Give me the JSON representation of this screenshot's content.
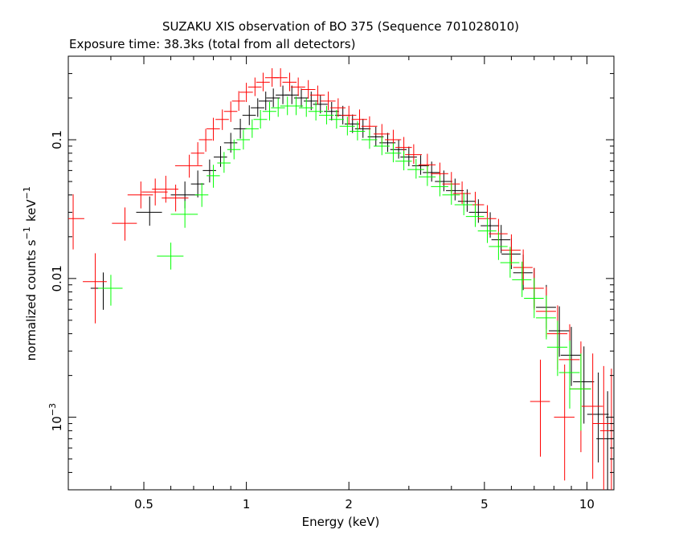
{
  "chart_data": {
    "type": "scatter",
    "title": "SUZAKU XIS observation of BO 375 (Sequence 701028010)",
    "subtitle": "Exposure time: 38.3ks (total from all detectors)",
    "xlabel": "Energy (keV)",
    "ylabel": "normalized counts s⁻¹ keV⁻¹",
    "x_scale": "log",
    "y_scale": "log",
    "xlim": [
      0.3,
      12
    ],
    "ylim": [
      0.0003,
      0.4
    ],
    "grid": false,
    "x_ticks": [
      {
        "value": 0.5,
        "label": "0.5"
      },
      {
        "value": 1,
        "label": "1"
      },
      {
        "value": 2,
        "label": "2"
      },
      {
        "value": 5,
        "label": "5"
      },
      {
        "value": 10,
        "label": "10"
      }
    ],
    "y_ticks": [
      {
        "value": 0.1,
        "label": "0.1"
      },
      {
        "value": 0.01,
        "label": "0.01"
      },
      {
        "value": 0.001,
        "base": "10",
        "exp": "−3"
      }
    ],
    "series": [
      {
        "color": "#000000",
        "points": [
          [
            0.38,
            0.0085,
            0.7,
            1.3
          ],
          [
            0.52,
            0.03,
            0.8,
            1.3
          ],
          [
            0.66,
            0.04,
            0.8,
            1.25
          ],
          [
            0.72,
            0.048,
            0.8,
            1.25
          ],
          [
            0.78,
            0.06,
            0.82,
            1.2
          ],
          [
            0.84,
            0.075,
            0.85,
            1.2
          ],
          [
            0.9,
            0.095,
            0.85,
            1.18
          ],
          [
            0.96,
            0.12,
            0.85,
            1.18
          ],
          [
            1.02,
            0.15,
            0.85,
            1.18
          ],
          [
            1.08,
            0.17,
            0.86,
            1.17
          ],
          [
            1.14,
            0.19,
            0.86,
            1.17
          ],
          [
            1.2,
            0.2,
            0.86,
            1.17
          ],
          [
            1.28,
            0.21,
            0.86,
            1.17
          ],
          [
            1.36,
            0.21,
            0.86,
            1.17
          ],
          [
            1.45,
            0.2,
            0.86,
            1.17
          ],
          [
            1.55,
            0.19,
            0.86,
            1.17
          ],
          [
            1.65,
            0.18,
            0.86,
            1.17
          ],
          [
            1.78,
            0.16,
            0.86,
            1.17
          ],
          [
            1.92,
            0.15,
            0.86,
            1.17
          ],
          [
            2.05,
            0.13,
            0.86,
            1.17
          ],
          [
            2.2,
            0.12,
            0.86,
            1.18
          ],
          [
            2.4,
            0.105,
            0.86,
            1.18
          ],
          [
            2.6,
            0.095,
            0.86,
            1.18
          ],
          [
            2.8,
            0.085,
            0.86,
            1.18
          ],
          [
            3.0,
            0.075,
            0.86,
            1.19
          ],
          [
            3.25,
            0.065,
            0.86,
            1.19
          ],
          [
            3.5,
            0.058,
            0.86,
            1.2
          ],
          [
            3.8,
            0.05,
            0.85,
            1.2
          ],
          [
            4.1,
            0.043,
            0.85,
            1.22
          ],
          [
            4.45,
            0.036,
            0.84,
            1.22
          ],
          [
            4.8,
            0.03,
            0.84,
            1.24
          ],
          [
            5.2,
            0.024,
            0.82,
            1.25
          ],
          [
            5.6,
            0.019,
            0.8,
            1.28
          ],
          [
            6.0,
            0.015,
            0.78,
            1.3
          ],
          [
            6.5,
            0.011,
            0.75,
            1.35
          ],
          [
            7.0,
            0.0085,
            0.72,
            1.4
          ],
          [
            7.6,
            0.0062,
            0.7,
            1.45
          ],
          [
            8.3,
            0.0042,
            0.65,
            1.5
          ],
          [
            9.0,
            0.0028,
            0.6,
            1.6
          ],
          [
            9.8,
            0.0018,
            0.5,
            1.8
          ],
          [
            10.8,
            0.00105,
            0.45,
            2.0
          ],
          [
            11.5,
            0.0007,
            0.4,
            2.2
          ]
        ]
      },
      {
        "color": "#ff0000",
        "points": [
          [
            0.31,
            0.027,
            0.6,
            1.5
          ],
          [
            0.36,
            0.0095,
            0.5,
            1.6
          ],
          [
            0.44,
            0.025,
            0.75,
            1.3
          ],
          [
            0.49,
            0.04,
            0.8,
            1.25
          ],
          [
            0.54,
            0.042,
            0.8,
            1.25
          ],
          [
            0.58,
            0.044,
            0.8,
            1.25
          ],
          [
            0.62,
            0.038,
            0.8,
            1.25
          ],
          [
            0.68,
            0.065,
            0.82,
            1.2
          ],
          [
            0.72,
            0.08,
            0.82,
            1.2
          ],
          [
            0.76,
            0.1,
            0.82,
            1.2
          ],
          [
            0.8,
            0.12,
            0.82,
            1.2
          ],
          [
            0.85,
            0.14,
            0.84,
            1.18
          ],
          [
            0.9,
            0.16,
            0.84,
            1.18
          ],
          [
            0.95,
            0.19,
            0.85,
            1.18
          ],
          [
            1.0,
            0.22,
            0.85,
            1.17
          ],
          [
            1.06,
            0.24,
            0.86,
            1.17
          ],
          [
            1.12,
            0.26,
            0.86,
            1.17
          ],
          [
            1.19,
            0.28,
            0.86,
            1.17
          ],
          [
            1.26,
            0.28,
            0.86,
            1.17
          ],
          [
            1.34,
            0.26,
            0.86,
            1.17
          ],
          [
            1.42,
            0.24,
            0.86,
            1.17
          ],
          [
            1.52,
            0.23,
            0.86,
            1.17
          ],
          [
            1.62,
            0.21,
            0.86,
            1.17
          ],
          [
            1.74,
            0.19,
            0.86,
            1.17
          ],
          [
            1.86,
            0.17,
            0.86,
            1.17
          ],
          [
            2.0,
            0.15,
            0.86,
            1.17
          ],
          [
            2.15,
            0.14,
            0.86,
            1.18
          ],
          [
            2.3,
            0.125,
            0.86,
            1.18
          ],
          [
            2.5,
            0.11,
            0.86,
            1.18
          ],
          [
            2.7,
            0.1,
            0.86,
            1.18
          ],
          [
            2.9,
            0.088,
            0.86,
            1.19
          ],
          [
            3.1,
            0.078,
            0.86,
            1.19
          ],
          [
            3.4,
            0.066,
            0.86,
            1.2
          ],
          [
            3.7,
            0.057,
            0.85,
            1.2
          ],
          [
            4.0,
            0.048,
            0.85,
            1.22
          ],
          [
            4.3,
            0.041,
            0.84,
            1.22
          ],
          [
            4.7,
            0.034,
            0.84,
            1.24
          ],
          [
            5.1,
            0.027,
            0.82,
            1.25
          ],
          [
            5.5,
            0.021,
            0.8,
            1.28
          ],
          [
            6.0,
            0.016,
            0.78,
            1.3
          ],
          [
            6.5,
            0.012,
            0.75,
            1.35
          ],
          [
            7.0,
            0.0085,
            0.7,
            1.4
          ],
          [
            7.6,
            0.0058,
            0.65,
            1.5
          ],
          [
            8.2,
            0.004,
            0.55,
            1.6
          ],
          [
            8.9,
            0.0026,
            0.45,
            1.8
          ],
          [
            9.6,
            0.0016,
            0.35,
            2.2
          ],
          [
            10.4,
            0.0012,
            0.3,
            2.4
          ],
          [
            11.2,
            0.0009,
            0.3,
            2.6
          ],
          [
            11.8,
            0.0008,
            0.3,
            2.8
          ],
          [
            7.3,
            0.0013,
            0.4,
            2.0
          ],
          [
            8.6,
            0.001,
            0.35,
            2.4
          ]
        ]
      },
      {
        "color": "#00ff00",
        "points": [
          [
            0.4,
            0.0085,
            0.75,
            1.25
          ],
          [
            0.6,
            0.0145,
            0.8,
            1.25
          ],
          [
            0.66,
            0.029,
            0.8,
            1.25
          ],
          [
            0.74,
            0.04,
            0.82,
            1.22
          ],
          [
            0.8,
            0.055,
            0.82,
            1.2
          ],
          [
            0.86,
            0.068,
            0.85,
            1.2
          ],
          [
            0.92,
            0.085,
            0.85,
            1.18
          ],
          [
            0.98,
            0.1,
            0.85,
            1.18
          ],
          [
            1.04,
            0.12,
            0.86,
            1.17
          ],
          [
            1.1,
            0.14,
            0.86,
            1.17
          ],
          [
            1.17,
            0.16,
            0.86,
            1.17
          ],
          [
            1.24,
            0.17,
            0.86,
            1.17
          ],
          [
            1.32,
            0.175,
            0.86,
            1.17
          ],
          [
            1.4,
            0.175,
            0.86,
            1.17
          ],
          [
            1.5,
            0.17,
            0.86,
            1.17
          ],
          [
            1.6,
            0.16,
            0.86,
            1.17
          ],
          [
            1.72,
            0.15,
            0.86,
            1.17
          ],
          [
            1.84,
            0.14,
            0.86,
            1.17
          ],
          [
            1.98,
            0.125,
            0.86,
            1.17
          ],
          [
            2.12,
            0.115,
            0.86,
            1.18
          ],
          [
            2.3,
            0.1,
            0.86,
            1.18
          ],
          [
            2.5,
            0.09,
            0.86,
            1.18
          ],
          [
            2.7,
            0.08,
            0.86,
            1.18
          ],
          [
            2.9,
            0.07,
            0.86,
            1.19
          ],
          [
            3.15,
            0.061,
            0.86,
            1.19
          ],
          [
            3.4,
            0.054,
            0.86,
            1.2
          ],
          [
            3.7,
            0.046,
            0.85,
            1.2
          ],
          [
            4.0,
            0.04,
            0.85,
            1.22
          ],
          [
            4.35,
            0.034,
            0.84,
            1.22
          ],
          [
            4.7,
            0.028,
            0.84,
            1.24
          ],
          [
            5.1,
            0.022,
            0.82,
            1.25
          ],
          [
            5.5,
            0.017,
            0.8,
            1.28
          ],
          [
            5.95,
            0.013,
            0.78,
            1.3
          ],
          [
            6.45,
            0.0098,
            0.75,
            1.35
          ],
          [
            7.0,
            0.0072,
            0.72,
            1.4
          ],
          [
            7.6,
            0.0052,
            0.7,
            1.45
          ],
          [
            8.2,
            0.0032,
            0.62,
            1.55
          ],
          [
            8.9,
            0.0021,
            0.55,
            1.7
          ],
          [
            9.6,
            0.0016,
            0.5,
            1.8
          ]
        ]
      }
    ]
  }
}
